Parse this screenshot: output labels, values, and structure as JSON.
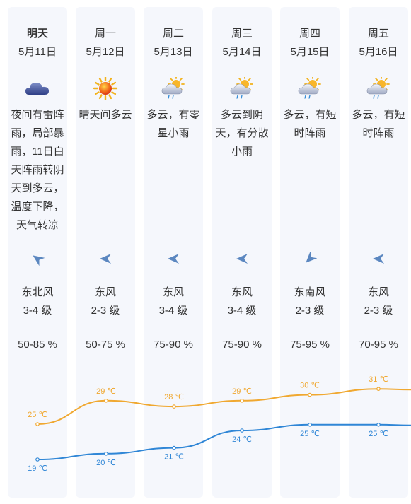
{
  "days": [
    {
      "day": "明天",
      "date": "5月11日",
      "desc": "夜间有雷阵雨，局部暴雨，11日白天阵雨转阴天到多云，温度下降，天气转凉",
      "wind_dir": "东北风",
      "wind_level": "3-4 级",
      "humidity": "50-85 %",
      "icon": "cloud-night-icon",
      "arrow": "northeast-arrow-icon",
      "high": "25 ℃",
      "low": "19 ℃"
    },
    {
      "day": "周一",
      "date": "5月12日",
      "desc": "晴天间多云",
      "wind_dir": "东风",
      "wind_level": "2-3 级",
      "humidity": "50-75 %",
      "icon": "sun-icon",
      "arrow": "east-arrow-icon",
      "high": "29 ℃",
      "low": "20 ℃"
    },
    {
      "day": "周二",
      "date": "5月13日",
      "desc": "多云，有零星小雨",
      "wind_dir": "东风",
      "wind_level": "3-4 级",
      "humidity": "75-90 %",
      "icon": "sun-cloud-rain-icon",
      "arrow": "east-arrow-icon",
      "high": "28 ℃",
      "low": "21 ℃"
    },
    {
      "day": "周三",
      "date": "5月14日",
      "desc": "多云到阴天，有分散小雨",
      "wind_dir": "东风",
      "wind_level": "3-4 级",
      "humidity": "75-90 %",
      "icon": "sun-cloud-rain-icon",
      "arrow": "east-arrow-icon",
      "high": "29 ℃",
      "low": "24 ℃"
    },
    {
      "day": "周四",
      "date": "5月15日",
      "desc": "多云，有短时阵雨",
      "wind_dir": "东南风",
      "wind_level": "2-3 级",
      "humidity": "75-95 %",
      "icon": "sun-cloud-rain-icon",
      "arrow": "southeast-arrow-icon",
      "high": "30 ℃",
      "low": "25 ℃"
    },
    {
      "day": "周五",
      "date": "5月16日",
      "desc": "多云，有短时阵雨",
      "wind_dir": "东风",
      "wind_level": "2-3 级",
      "humidity": "70-95 %",
      "icon": "sun-cloud-rain-icon",
      "arrow": "east-arrow-icon",
      "high": "31 ℃",
      "low": "25 ℃"
    }
  ],
  "temps": {
    "high": [
      25,
      29,
      28,
      29,
      30,
      31
    ],
    "low": [
      19,
      20,
      21,
      24,
      25,
      25
    ],
    "high_color": "#f0a830",
    "low_color": "#2f86d6",
    "unit": "℃"
  }
}
